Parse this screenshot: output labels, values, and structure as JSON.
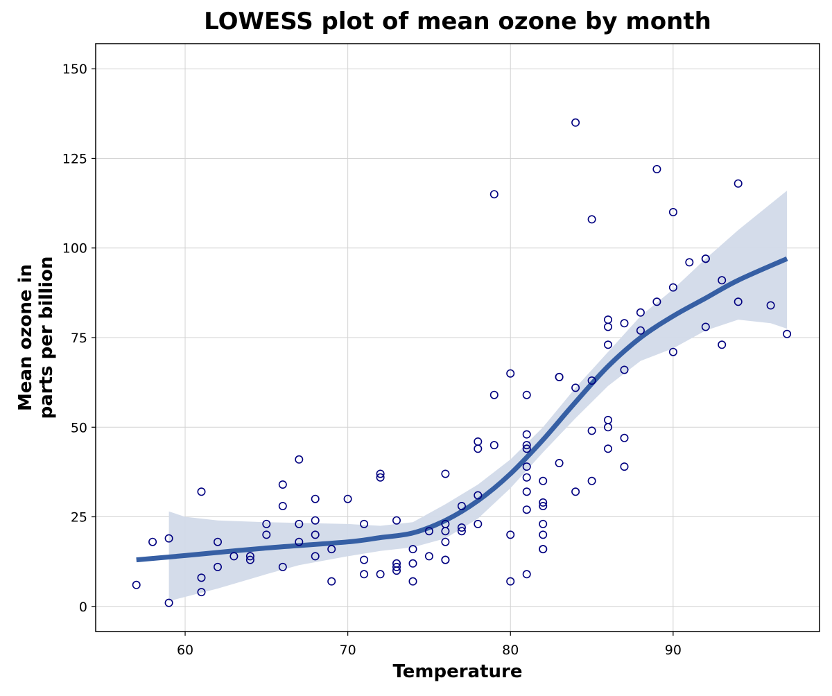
{
  "chart_data": {
    "type": "scatter",
    "title": "LOWESS plot of mean ozone by month",
    "xlabel": "Temperature",
    "ylabel_lines": [
      "Mean ozone in",
      "parts per billion"
    ],
    "xlim": [
      54.5,
      99
    ],
    "ylim": [
      -7,
      157
    ],
    "x_ticks": [
      60,
      70,
      80,
      90
    ],
    "y_ticks": [
      0,
      25,
      50,
      75,
      100,
      125,
      150
    ],
    "grid": true,
    "legend": "none",
    "colors": {
      "points": "#000080",
      "smooth_line": "#365fa4",
      "confidence_band": "#d2dae9"
    },
    "points": [
      [
        57,
        6
      ],
      [
        58,
        18
      ],
      [
        59,
        19
      ],
      [
        59,
        1
      ],
      [
        61,
        32
      ],
      [
        61,
        8
      ],
      [
        61,
        4
      ],
      [
        62,
        18
      ],
      [
        62,
        11
      ],
      [
        63,
        14
      ],
      [
        64,
        14
      ],
      [
        64,
        13
      ],
      [
        65,
        23
      ],
      [
        65,
        20
      ],
      [
        66,
        34
      ],
      [
        66,
        28
      ],
      [
        66,
        11
      ],
      [
        67,
        41
      ],
      [
        67,
        23
      ],
      [
        67,
        18
      ],
      [
        68,
        30
      ],
      [
        68,
        24
      ],
      [
        68,
        20
      ],
      [
        68,
        14
      ],
      [
        69,
        16
      ],
      [
        69,
        7
      ],
      [
        70,
        30
      ],
      [
        71,
        23
      ],
      [
        71,
        13
      ],
      [
        71,
        9
      ],
      [
        72,
        37
      ],
      [
        72,
        36
      ],
      [
        72,
        9
      ],
      [
        73,
        24
      ],
      [
        73,
        12
      ],
      [
        73,
        11
      ],
      [
        73,
        10
      ],
      [
        74,
        16
      ],
      [
        74,
        12
      ],
      [
        74,
        7
      ],
      [
        75,
        21
      ],
      [
        75,
        14
      ],
      [
        76,
        37
      ],
      [
        76,
        23
      ],
      [
        76,
        21
      ],
      [
        76,
        18
      ],
      [
        76,
        13
      ],
      [
        76,
        13
      ],
      [
        77,
        28
      ],
      [
        77,
        22
      ],
      [
        77,
        21
      ],
      [
        78,
        46
      ],
      [
        78,
        44
      ],
      [
        78,
        31
      ],
      [
        78,
        23
      ],
      [
        79,
        115
      ],
      [
        79,
        59
      ],
      [
        79,
        45
      ],
      [
        80,
        65
      ],
      [
        80,
        20
      ],
      [
        80,
        7
      ],
      [
        81,
        59
      ],
      [
        81,
        48
      ],
      [
        81,
        45
      ],
      [
        81,
        44
      ],
      [
        81,
        39
      ],
      [
        81,
        36
      ],
      [
        81,
        32
      ],
      [
        81,
        27
      ],
      [
        81,
        9
      ],
      [
        82,
        35
      ],
      [
        82,
        29
      ],
      [
        82,
        28
      ],
      [
        82,
        23
      ],
      [
        82,
        20
      ],
      [
        82,
        16
      ],
      [
        82,
        16
      ],
      [
        83,
        64
      ],
      [
        83,
        64
      ],
      [
        83,
        40
      ],
      [
        84,
        135
      ],
      [
        84,
        61
      ],
      [
        84,
        32
      ],
      [
        85,
        108
      ],
      [
        85,
        63
      ],
      [
        85,
        49
      ],
      [
        85,
        35
      ],
      [
        86,
        80
      ],
      [
        86,
        78
      ],
      [
        86,
        73
      ],
      [
        86,
        52
      ],
      [
        86,
        50
      ],
      [
        86,
        44
      ],
      [
        87,
        79
      ],
      [
        87,
        66
      ],
      [
        87,
        47
      ],
      [
        87,
        39
      ],
      [
        88,
        82
      ],
      [
        88,
        77
      ],
      [
        89,
        122
      ],
      [
        89,
        85
      ],
      [
        90,
        110
      ],
      [
        90,
        89
      ],
      [
        90,
        71
      ],
      [
        91,
        96
      ],
      [
        92,
        97
      ],
      [
        92,
        97
      ],
      [
        92,
        78
      ],
      [
        93,
        91
      ],
      [
        93,
        73
      ],
      [
        94,
        118
      ],
      [
        94,
        85
      ],
      [
        96,
        84
      ],
      [
        97,
        76
      ]
    ],
    "smooth_fit": [
      [
        57,
        13
      ],
      [
        60,
        14.2
      ],
      [
        65,
        16.3
      ],
      [
        70,
        18
      ],
      [
        72,
        19.2
      ],
      [
        74,
        20.5
      ],
      [
        76,
        24
      ],
      [
        78,
        29.5
      ],
      [
        80,
        37
      ],
      [
        82,
        46.5
      ],
      [
        84,
        57
      ],
      [
        86,
        67
      ],
      [
        88,
        75
      ],
      [
        90,
        81
      ],
      [
        92,
        86
      ],
      [
        94,
        91
      ],
      [
        97,
        97
      ]
    ],
    "band_upper": [
      [
        59,
        26.5
      ],
      [
        60,
        25
      ],
      [
        62,
        24
      ],
      [
        65,
        23.5
      ],
      [
        70,
        23
      ],
      [
        72,
        22.5
      ],
      [
        74,
        23.5
      ],
      [
        76,
        28.5
      ],
      [
        78,
        34
      ],
      [
        80,
        41
      ],
      [
        82,
        50
      ],
      [
        84,
        61
      ],
      [
        86,
        71
      ],
      [
        88,
        81
      ],
      [
        90,
        88.5
      ],
      [
        92,
        97
      ],
      [
        94,
        105
      ],
      [
        97,
        116
      ]
    ],
    "band_lower": [
      [
        97,
        77.5
      ],
      [
        96,
        79
      ],
      [
        94,
        80
      ],
      [
        92,
        77
      ],
      [
        90,
        72
      ],
      [
        88,
        68.5
      ],
      [
        86,
        61.5
      ],
      [
        84,
        52.5
      ],
      [
        82,
        43
      ],
      [
        80,
        33
      ],
      [
        78,
        24.5
      ],
      [
        76,
        19
      ],
      [
        74,
        16.5
      ],
      [
        72,
        15.5
      ],
      [
        70,
        14
      ],
      [
        67,
        11.5
      ],
      [
        65,
        9
      ],
      [
        62,
        5
      ],
      [
        59,
        1.5
      ]
    ]
  }
}
